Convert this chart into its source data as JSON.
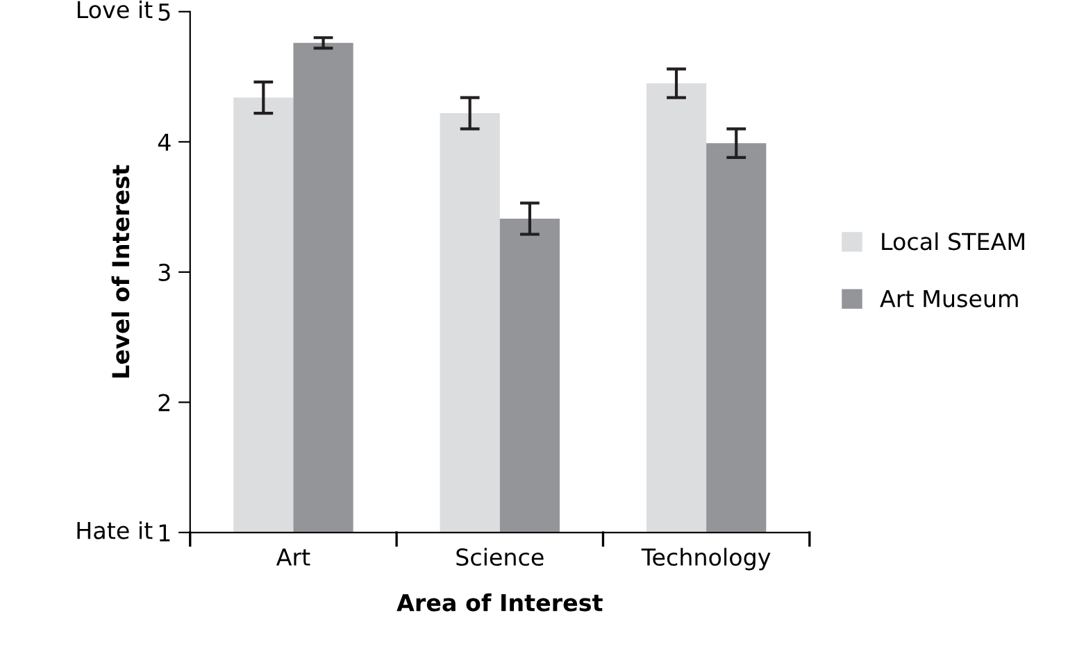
{
  "chart_data": {
    "type": "bar",
    "xlabel": "Area of Interest",
    "ylabel": "Level of Interest",
    "categories": [
      "Art",
      "Science",
      "Technology"
    ],
    "series": [
      {
        "name": "Local STEAM",
        "color": "#dcdddf",
        "values": [
          4.34,
          4.22,
          4.45
        ],
        "errors": [
          0.12,
          0.12,
          0.11
        ]
      },
      {
        "name": "Art Museum",
        "color": "#939598",
        "values": [
          4.76,
          3.41,
          3.99
        ],
        "errors": [
          0.04,
          0.12,
          0.11
        ]
      }
    ],
    "ylim": [
      1,
      5
    ],
    "yticks": [
      1,
      2,
      3,
      4,
      5
    ],
    "annotations": [
      "Love it",
      "Hate it"
    ],
    "grid": false,
    "legend": "right"
  }
}
